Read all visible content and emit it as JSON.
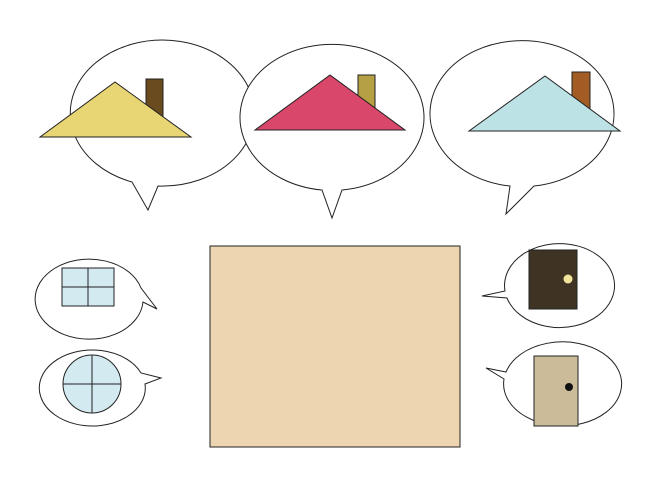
{
  "colors": {
    "background": "#ffffff",
    "bubble_fill": "#ffffff",
    "outline": "#222222",
    "wall": "#edd5b2"
  },
  "roof_choices": [
    {
      "roof_color": "#e8d573",
      "chimney_color": "#6a4a1f"
    },
    {
      "roof_color": "#d9476a",
      "chimney_color": "#b5a043"
    },
    {
      "roof_color": "#bde2e6",
      "chimney_color": "#a35d24"
    }
  ],
  "window_choices": [
    {
      "shape": "square",
      "glass_color": "#d3eaf0"
    },
    {
      "shape": "round",
      "glass_color": "#d3eaf0"
    }
  ],
  "door_choices": [
    {
      "door_color": "#3f3424",
      "knob_color": "#f2e49c"
    },
    {
      "door_color": "#cbbb99",
      "knob_color": "#111111"
    }
  ]
}
